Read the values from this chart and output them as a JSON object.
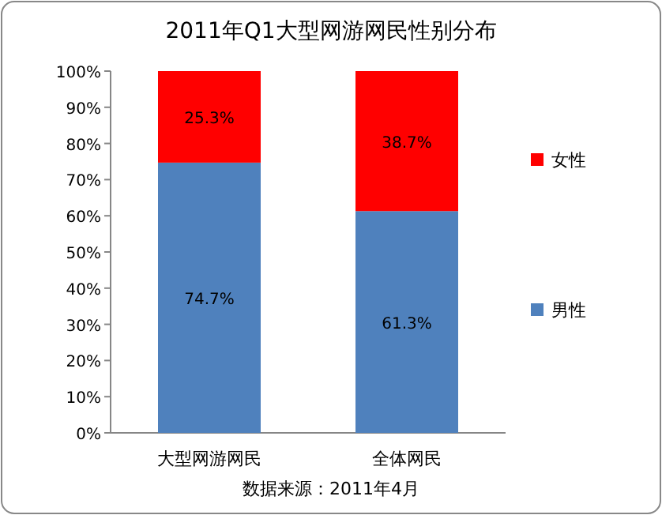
{
  "chart_data": {
    "type": "bar",
    "stacked": true,
    "title": "2011年Q1大型网游网民性别分布",
    "categories": [
      "大型网游网民",
      "全体网民"
    ],
    "series": [
      {
        "name": "男性",
        "color": "#4f81bd",
        "values": [
          74.7,
          61.3
        ],
        "value_labels": [
          "74.7%",
          "61.3%"
        ]
      },
      {
        "name": "女性",
        "color": "#ff0000",
        "values": [
          25.3,
          38.7
        ],
        "value_labels": [
          "25.3%",
          "38.7%"
        ]
      }
    ],
    "ylim": [
      0,
      100
    ],
    "yticks": [
      {
        "value": 0,
        "label": "0%"
      },
      {
        "value": 10,
        "label": "10%"
      },
      {
        "value": 20,
        "label": "20%"
      },
      {
        "value": 30,
        "label": "30%"
      },
      {
        "value": 40,
        "label": "40%"
      },
      {
        "value": 50,
        "label": "50%"
      },
      {
        "value": 60,
        "label": "60%"
      },
      {
        "value": 70,
        "label": "70%"
      },
      {
        "value": 80,
        "label": "80%"
      },
      {
        "value": 90,
        "label": "90%"
      },
      {
        "value": 100,
        "label": "100%"
      }
    ],
    "legend": "right",
    "grid": false,
    "annotations": [
      "数据来源：2011年4月"
    ]
  }
}
